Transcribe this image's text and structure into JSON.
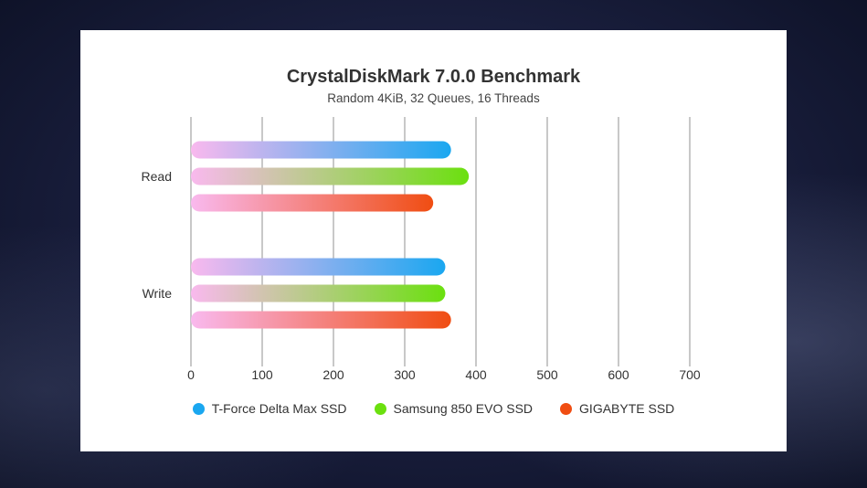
{
  "chart_data": {
    "type": "bar",
    "orientation": "horizontal",
    "title": "CrystalDiskMark 7.0.0 Benchmark",
    "subtitle": "Random 4KiB, 32 Queues, 16 Threads",
    "categories": [
      "Read",
      "Write"
    ],
    "series": [
      {
        "name": "T-Force Delta Max SSD",
        "color": "#1aa7f0",
        "values": [
          365,
          357
        ]
      },
      {
        "name": "Samsung 850 EVO SSD",
        "color": "#6be00f",
        "values": [
          390,
          357
        ]
      },
      {
        "name": "GIGABYTE SSD",
        "color": "#f04d12",
        "values": [
          340,
          365
        ]
      }
    ],
    "gradient_start_color": "#f9b9ee",
    "xlim": [
      0,
      700
    ],
    "xticks": [
      0,
      100,
      200,
      300,
      400,
      500,
      600,
      700
    ],
    "grid": true,
    "legend_position": "bottom"
  }
}
